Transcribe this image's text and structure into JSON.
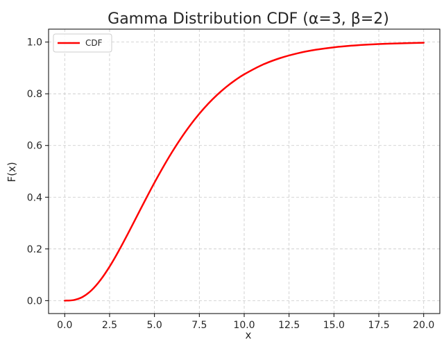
{
  "colors": {
    "series_line": "#ff0000",
    "grid": "#c8c8c8",
    "axes": "#000000",
    "background": "#ffffff"
  },
  "chart_data": {
    "type": "line",
    "title": "Gamma Distribution CDF (α=3, β=2)",
    "xlabel": "x",
    "ylabel": "F(x)",
    "xlim": [
      -0.9,
      20.9
    ],
    "ylim": [
      -0.05,
      1.05
    ],
    "xticks": [
      0,
      2.5,
      5,
      7.5,
      10,
      12.5,
      15,
      17.5,
      20
    ],
    "xtick_labels": [
      "0.0",
      "2.5",
      "5.0",
      "7.5",
      "10.0",
      "12.5",
      "15.0",
      "17.5",
      "20.0"
    ],
    "yticks": [
      0,
      0.2,
      0.4,
      0.6,
      0.8,
      1.0
    ],
    "ytick_labels": [
      "0.0",
      "0.2",
      "0.4",
      "0.6",
      "0.8",
      "1.0"
    ],
    "grid": true,
    "grid_style": "dashed",
    "legend": {
      "placement": "top-left",
      "entries": [
        "CDF"
      ]
    },
    "series": [
      {
        "name": "CDF",
        "color": "#ff0000",
        "x": [
          0,
          0.5,
          1,
          1.5,
          2,
          2.5,
          3,
          3.5,
          4,
          4.5,
          5,
          5.5,
          6,
          6.5,
          7,
          7.5,
          8,
          8.5,
          9,
          9.5,
          10,
          11,
          12,
          13,
          14,
          15,
          16,
          17,
          18,
          19,
          20
        ],
        "y": [
          0.0,
          0.0022,
          0.0144,
          0.0405,
          0.0803,
          0.1315,
          0.1912,
          0.256,
          0.3233,
          0.3907,
          0.4562,
          0.5185,
          0.5768,
          0.6304,
          0.6792,
          0.7229,
          0.7619,
          0.7963,
          0.8264,
          0.8526,
          0.8753,
          0.9116,
          0.938,
          0.957,
          0.9704,
          0.9797,
          0.9862,
          0.9907,
          0.9938,
          0.9958,
          0.9972
        ]
      }
    ]
  }
}
